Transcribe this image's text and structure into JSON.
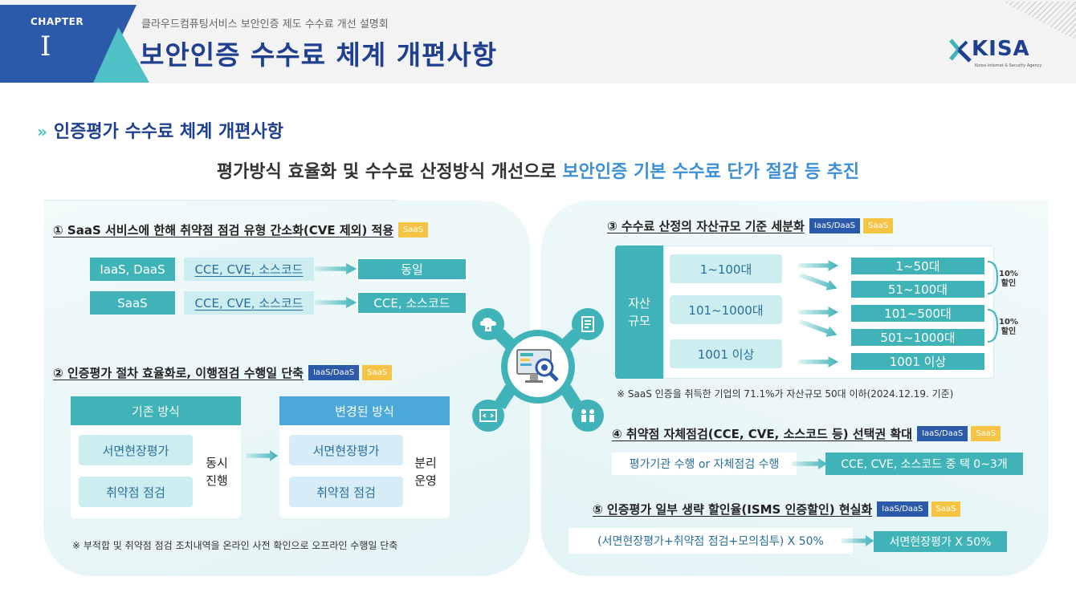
{
  "header": {
    "chapter_label": "CHAPTER",
    "chapter_num": "I",
    "subtitle": "클라우드컴퓨팅서비스 보안인증 제도 수수료 개선 설명회",
    "title": "보안인증 수수료 체계 개편사항",
    "logo_text": "KISA",
    "logo_sub": "Korea Internet & Security Agency"
  },
  "section_title": "인증평가 수수료 체계 개편사항",
  "summary": {
    "plain": "평가방식 효율화 및 수수료 산정방식 개선으로 ",
    "highlight": "보안인증 기본 수수료 단가 절감 등 추진"
  },
  "tags": {
    "iaas_daas": "IaaS/DaaS",
    "saas": "SaaS"
  },
  "item1": {
    "title": "① SaaS 서비스에 한해 취약점 점검 유형 간소화(CVE 제외) 적용",
    "rows": [
      {
        "type": "IaaS, DaaS",
        "from": "CCE, CVE, 소스코드",
        "to": "동일"
      },
      {
        "type": "SaaS",
        "from": "CCE, CVE, 소스코드",
        "to": "CCE, 소스코드"
      }
    ]
  },
  "item2": {
    "title": "② 인증평가 절차 효율화로, 이행점검 수행일 단축",
    "before": {
      "header": "기존 방식",
      "steps": [
        "서면현장평가",
        "취약점 점검"
      ],
      "mode_line1": "동시",
      "mode_line2": "진행"
    },
    "after": {
      "header": "변경된 방식",
      "steps": [
        "서면현장평가",
        "취약점 점검"
      ],
      "mode_line1": "분리",
      "mode_line2": "운영"
    },
    "note": "※ 부적합 및 취약점 점검 조치내역을 온라인 사전 확인으로 오프라인 수행일 단축"
  },
  "item3": {
    "title": "③ 수수료 산정의 자산규모 기준 세분화",
    "asset_label_line1": "자산",
    "asset_label_line2": "규모",
    "old_ranges": [
      "1~100대",
      "101~1000대",
      "1001 이상"
    ],
    "new_ranges": [
      "1~50대",
      "51~100대",
      "101~500대",
      "501~1000대",
      "1001 이상"
    ],
    "discounts": [
      {
        "line1": "10%",
        "line2": "할인"
      },
      {
        "line1": "10%",
        "line2": "할인"
      }
    ],
    "note": "※ SaaS 인증을 취득한 기업의 71.1%가 자산규모 50대 이하(2024.12.19. 기준)"
  },
  "item4": {
    "title": "④ 취약점 자체점검(CCE, CVE, 소스코드 등) 선택권 확대",
    "from": "평가기관 수행 or 자체점검 수행",
    "to": "CCE, CVE, 소스코드 중 택 0~3개"
  },
  "item5": {
    "title": "⑤ 인증평가 일부 생략 할인율(ISMS 인증할인) 현실화",
    "from": "(서면현장평가+취약점 점검+모의침투) X 50%",
    "to": "서면현장평가 X 50%"
  },
  "hub_icons": [
    "cloud-lock-icon",
    "checklist-icon",
    "code-window-icon",
    "people-icon",
    "monitor-magnifier-icon"
  ],
  "colors": {
    "navy": "#1f3f8f",
    "teal": "#3fb3b7",
    "blue": "#2b5aab",
    "yellow": "#f6c445",
    "highlight": "#3d8fd6"
  }
}
